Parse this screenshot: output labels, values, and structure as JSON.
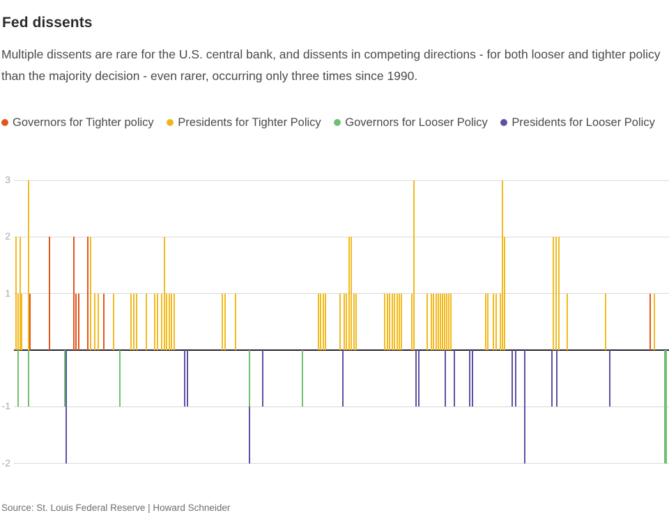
{
  "page": {
    "title": "Fed dissents",
    "subtitle": "Multiple dissents are rare for the U.S. central bank, and dissents in competing directions - for both looser and tighter policy than the majority decision - even rarer, occurring only three times since 1990.",
    "source": "Source: St. Louis Federal Reserve | Howard Schneider"
  },
  "legend": {
    "items": [
      {
        "series": "gt",
        "label": "Governors for Tighter policy",
        "color": "#e1561f"
      },
      {
        "series": "pt",
        "label": "Presidents for Tighter Policy",
        "color": "#f0b41e"
      },
      {
        "series": "gl",
        "label": "Governors for Looser Policy",
        "color": "#70bf73"
      },
      {
        "series": "pl",
        "label": "Presidents for Looser Policy",
        "color": "#5d50a3"
      }
    ]
  },
  "chart_data": {
    "type": "bar",
    "title": "Fed dissents",
    "xlabel": "",
    "ylabel": "",
    "x_axis": "unlabeled time axis, since 1990",
    "ylim": [
      -2.2,
      3.2
    ],
    "yticks": [
      3,
      2,
      1,
      -1,
      -2
    ],
    "grid": true,
    "legend_position": "top",
    "value_meaning": "dissenting votes per meeting; positive = for tighter policy, negative = for looser policy",
    "series_colors": {
      "gt": "#e1561f",
      "pt": "#f2ba1d",
      "gl": "#70bf73",
      "pl": "#5d50a3"
    },
    "series_names": {
      "gt": "Governors for Tighter policy",
      "pt": "Presidents for Tighter Policy",
      "gl": "Governors for Looser Policy",
      "pl": "Presidents for Looser Policy"
    },
    "bars": [
      [
        23,
        0,
        2,
        "pt"
      ],
      [
        26,
        0,
        1,
        "pt"
      ],
      [
        29,
        0,
        2,
        "pt"
      ],
      [
        31,
        0,
        1,
        "pt"
      ],
      [
        41,
        0,
        3,
        "pt"
      ],
      [
        43,
        0,
        1,
        "gt"
      ],
      [
        71,
        0,
        2,
        "gt"
      ],
      [
        106,
        0,
        2,
        "gt"
      ],
      [
        109,
        0,
        1,
        "gt"
      ],
      [
        113,
        0,
        1,
        "gt"
      ],
      [
        126,
        0,
        2,
        "gt"
      ],
      [
        130,
        0,
        2,
        "pt"
      ],
      [
        136,
        0,
        1,
        "pt"
      ],
      [
        141,
        0,
        1,
        "pt"
      ],
      [
        149,
        0,
        1,
        "gt"
      ],
      [
        163,
        0,
        1,
        "pt"
      ],
      [
        188,
        0,
        1,
        "pt"
      ],
      [
        192,
        0,
        1,
        "pt"
      ],
      [
        196,
        0,
        1,
        "pt"
      ],
      [
        210,
        0,
        1,
        "pt"
      ],
      [
        222,
        0,
        1,
        "pt"
      ],
      [
        226,
        0,
        1,
        "pt"
      ],
      [
        232,
        0,
        1,
        "pt"
      ],
      [
        236,
        0,
        2,
        "pt"
      ],
      [
        239,
        0,
        1,
        "pt"
      ],
      [
        243,
        0,
        1,
        "pt"
      ],
      [
        246,
        0,
        1,
        "pt"
      ],
      [
        250,
        0,
        1,
        "pt"
      ],
      [
        319,
        0,
        1,
        "pt"
      ],
      [
        323,
        0,
        1,
        "pt"
      ],
      [
        338,
        0,
        1,
        "pt"
      ],
      [
        457,
        0,
        1,
        "pt"
      ],
      [
        460,
        0,
        1,
        "pt"
      ],
      [
        464,
        0,
        1,
        "pt"
      ],
      [
        467,
        0,
        1,
        "pt"
      ],
      [
        488,
        0,
        1,
        "pt"
      ],
      [
        494,
        0,
        1,
        "pt"
      ],
      [
        497,
        0,
        1,
        "pt"
      ],
      [
        501,
        0,
        2,
        "pt"
      ],
      [
        504,
        0,
        2,
        "pt"
      ],
      [
        508,
        0,
        1,
        "pt"
      ],
      [
        511,
        0,
        1,
        "pt"
      ],
      [
        552,
        0,
        1,
        "pt"
      ],
      [
        556,
        0,
        1,
        "pt"
      ],
      [
        559,
        0,
        1,
        "pt"
      ],
      [
        563,
        0,
        1,
        "pt"
      ],
      [
        566,
        0,
        1,
        "pt"
      ],
      [
        570,
        0,
        1,
        "pt"
      ],
      [
        573,
        0,
        1,
        "pt"
      ],
      [
        576,
        0,
        1,
        "pt"
      ],
      [
        591,
        0,
        1,
        "pt"
      ],
      [
        594,
        0,
        3,
        "pt"
      ],
      [
        613,
        0,
        1,
        "pt"
      ],
      [
        619,
        0,
        1,
        "pt"
      ],
      [
        622,
        0,
        1,
        "pt"
      ],
      [
        626,
        0,
        1,
        "pt"
      ],
      [
        629,
        0,
        1,
        "pt"
      ],
      [
        632,
        0,
        1,
        "pt"
      ],
      [
        635,
        0,
        1,
        "pt"
      ],
      [
        638,
        0,
        1,
        "pt"
      ],
      [
        641,
        0,
        1,
        "pt"
      ],
      [
        644,
        0,
        1,
        "pt"
      ],
      [
        647,
        0,
        1,
        "pt"
      ],
      [
        697,
        0,
        1,
        "pt"
      ],
      [
        700,
        0,
        1,
        "pt"
      ],
      [
        708,
        0,
        1,
        "pt"
      ],
      [
        712,
        0,
        1,
        "pt"
      ],
      [
        718,
        0,
        1,
        "pt"
      ],
      [
        721,
        0,
        3,
        "pt"
      ],
      [
        724,
        0,
        2,
        "pt"
      ],
      [
        794,
        0,
        2,
        "pt"
      ],
      [
        798,
        0,
        2,
        "pt"
      ],
      [
        802,
        0,
        2,
        "pt"
      ],
      [
        814,
        0,
        1,
        "pt"
      ],
      [
        869,
        0,
        1,
        "pt"
      ],
      [
        933,
        0,
        1,
        "gt"
      ],
      [
        939,
        0,
        1,
        "pt"
      ],
      [
        26,
        0,
        -1,
        "gl"
      ],
      [
        41,
        0,
        -1,
        "gl"
      ],
      [
        93,
        0,
        -1,
        "gl"
      ],
      [
        95,
        0,
        -2,
        "pl"
      ],
      [
        172,
        0,
        -1,
        "gl"
      ],
      [
        265,
        0,
        -1,
        "pl"
      ],
      [
        269,
        0,
        -1,
        "pl"
      ],
      [
        358,
        0,
        -1,
        "gl"
      ],
      [
        358,
        -1,
        -2,
        "pl"
      ],
      [
        377,
        0,
        -1,
        "pl"
      ],
      [
        434,
        0,
        -1,
        "gl"
      ],
      [
        492,
        0,
        -1,
        "pl"
      ],
      [
        597,
        0,
        -1,
        "pl"
      ],
      [
        601,
        0,
        -1,
        "pl"
      ],
      [
        639,
        0,
        -1,
        "pl"
      ],
      [
        652,
        0,
        -1,
        "pl"
      ],
      [
        674,
        0,
        -1,
        "pl"
      ],
      [
        678,
        0,
        -1,
        "pl"
      ],
      [
        735,
        0,
        -1,
        "pl"
      ],
      [
        740,
        0,
        -1,
        "pl"
      ],
      [
        753,
        0,
        -2,
        "pl"
      ],
      [
        792,
        0,
        -1,
        "pl"
      ],
      [
        799,
        0,
        -1,
        "pl"
      ],
      [
        875,
        0,
        -1,
        "pl"
      ],
      [
        955,
        0,
        -2,
        "gl",
        4
      ]
    ]
  }
}
